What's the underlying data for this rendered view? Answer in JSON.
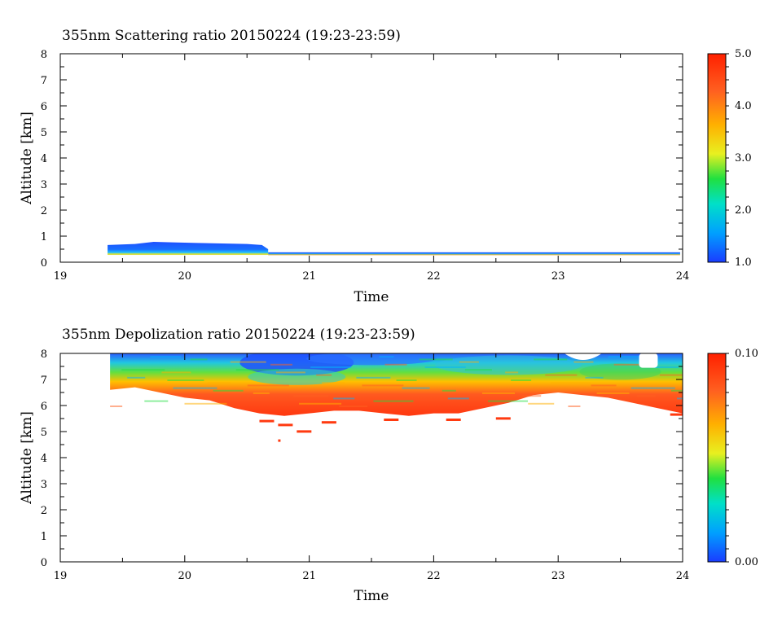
{
  "chart_data": [
    {
      "type": "heatmap",
      "title": "355nm Scattering ratio  20150224 (19:23-23:59)",
      "xlabel": "Time",
      "ylabel": "Altitude [km]",
      "xlim": [
        19,
        24
      ],
      "ylim": [
        0,
        8
      ],
      "xticks": [
        "19",
        "20",
        "21",
        "22",
        "23",
        "24"
      ],
      "yticks": [
        "0",
        "1",
        "2",
        "3",
        "4",
        "5",
        "6",
        "7",
        "8"
      ],
      "colorbar": {
        "range": [
          1.0,
          5.0
        ],
        "ticks": [
          "1.0",
          "2.0",
          "3.0",
          "4.0",
          "5.0"
        ],
        "colormap": [
          "#1a3cff",
          "#00b4ff",
          "#00e0c0",
          "#20e040",
          "#e8f020",
          "#ffb000",
          "#ff6020",
          "#ff2000"
        ]
      },
      "features": [
        {
          "description": "low layer",
          "x_range": [
            19.38,
            20.67
          ],
          "alt_range_km": [
            0.3,
            0.75
          ],
          "value_range": [
            1.0,
            1.6
          ]
        },
        {
          "description": "surface layer",
          "x_range": [
            20.67,
            23.98
          ],
          "alt_range_km": [
            0.28,
            0.38
          ],
          "value_range": [
            1.0,
            3.5
          ]
        }
      ]
    },
    {
      "type": "heatmap",
      "title": "355nm Depolization ratio  20150224 (19:23-23:59)",
      "xlabel": "Time",
      "ylabel": "Altitude [km]",
      "xlim": [
        19,
        24
      ],
      "ylim": [
        0,
        8
      ],
      "xticks": [
        "19",
        "20",
        "21",
        "22",
        "23",
        "24"
      ],
      "yticks": [
        "0",
        "1",
        "2",
        "3",
        "4",
        "5",
        "6",
        "7",
        "8"
      ],
      "colorbar": {
        "range": [
          0.0,
          0.1
        ],
        "ticks": [
          "0.00",
          "0.10"
        ],
        "colormap": [
          "#1a3cff",
          "#00b4ff",
          "#00e0c0",
          "#20e040",
          "#e8f020",
          "#ffb000",
          "#ff6020",
          "#ff2000"
        ]
      },
      "features": [
        {
          "description": "cloud layer",
          "x_range": [
            19.38,
            24.0
          ],
          "base_alt_km": [
            [
              19.4,
              6.6
            ],
            [
              19.6,
              6.7
            ],
            [
              19.8,
              6.5
            ],
            [
              20.0,
              6.3
            ],
            [
              20.2,
              6.2
            ],
            [
              20.4,
              5.9
            ],
            [
              20.6,
              5.7
            ],
            [
              20.8,
              5.6
            ],
            [
              21.0,
              5.7
            ],
            [
              21.2,
              5.8
            ],
            [
              21.4,
              5.8
            ],
            [
              21.6,
              5.7
            ],
            [
              21.8,
              5.6
            ],
            [
              22.0,
              5.7
            ],
            [
              22.2,
              5.7
            ],
            [
              22.4,
              5.9
            ],
            [
              22.6,
              6.1
            ],
            [
              22.8,
              6.4
            ],
            [
              23.0,
              6.5
            ],
            [
              23.2,
              6.4
            ],
            [
              23.4,
              6.3
            ],
            [
              23.6,
              6.1
            ],
            [
              23.8,
              5.9
            ],
            [
              24.0,
              5.7
            ]
          ],
          "top_alt_km": 8.0,
          "value_range": [
            0.0,
            0.1
          ]
        }
      ]
    }
  ]
}
